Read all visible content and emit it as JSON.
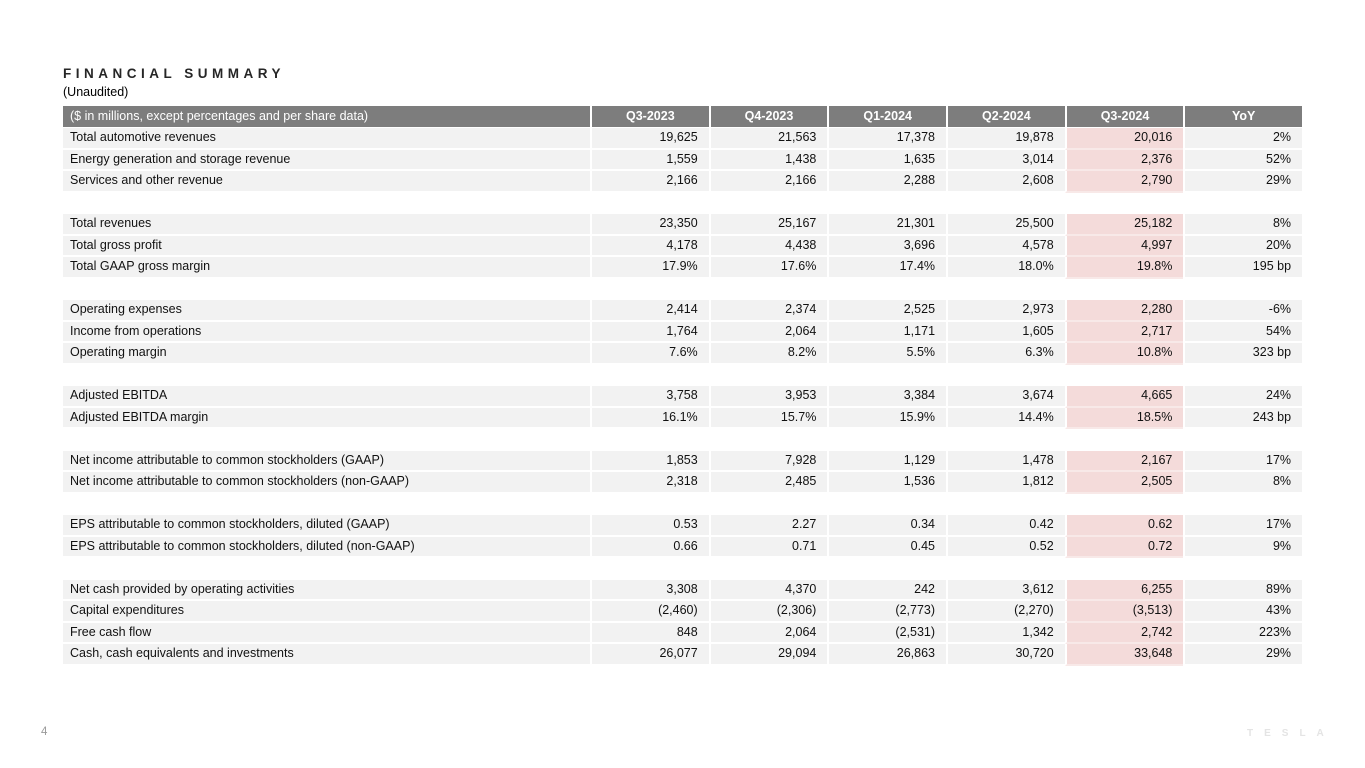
{
  "page": {
    "title": "FINANCIAL SUMMARY",
    "subtitle": "(Unaudited)",
    "page_number": "4",
    "brand_wordmark": "TESLA"
  },
  "colors": {
    "header_bg": "#7d7d7d",
    "header_text": "#ffffff",
    "row_bg": "#f2f2f2",
    "highlight_bg": "#f4dbda",
    "highlight_divider": "#f8e9e8"
  },
  "table": {
    "header_label": "($ in millions, except percentages and per share data)",
    "columns": [
      "Q3-2023",
      "Q4-2023",
      "Q1-2024",
      "Q2-2024",
      "Q3-2024",
      "YoY"
    ],
    "highlight_column_index": 4,
    "groups": [
      {
        "rows": [
          {
            "label": "Total automotive revenues",
            "values": [
              "19,625",
              "21,563",
              "17,378",
              "19,878",
              "20,016",
              "2%"
            ]
          },
          {
            "label": "Energy generation and storage revenue",
            "values": [
              "1,559",
              "1,438",
              "1,635",
              "3,014",
              "2,376",
              "52%"
            ]
          },
          {
            "label": "Services and other revenue",
            "values": [
              "2,166",
              "2,166",
              "2,288",
              "2,608",
              "2,790",
              "29%"
            ]
          }
        ]
      },
      {
        "rows": [
          {
            "label": "Total revenues",
            "values": [
              "23,350",
              "25,167",
              "21,301",
              "25,500",
              "25,182",
              "8%"
            ]
          },
          {
            "label": "Total gross profit",
            "values": [
              "4,178",
              "4,438",
              "3,696",
              "4,578",
              "4,997",
              "20%"
            ]
          },
          {
            "label": "Total GAAP gross margin",
            "values": [
              "17.9%",
              "17.6%",
              "17.4%",
              "18.0%",
              "19.8%",
              "195 bp"
            ]
          }
        ]
      },
      {
        "rows": [
          {
            "label": "Operating expenses",
            "values": [
              "2,414",
              "2,374",
              "2,525",
              "2,973",
              "2,280",
              "-6%"
            ]
          },
          {
            "label": "Income from operations",
            "values": [
              "1,764",
              "2,064",
              "1,171",
              "1,605",
              "2,717",
              "54%"
            ]
          },
          {
            "label": "Operating margin",
            "values": [
              "7.6%",
              "8.2%",
              "5.5%",
              "6.3%",
              "10.8%",
              "323 bp"
            ]
          }
        ]
      },
      {
        "rows": [
          {
            "label": "Adjusted EBITDA",
            "values": [
              "3,758",
              "3,953",
              "3,384",
              "3,674",
              "4,665",
              "24%"
            ]
          },
          {
            "label": "Adjusted EBITDA margin",
            "values": [
              "16.1%",
              "15.7%",
              "15.9%",
              "14.4%",
              "18.5%",
              "243 bp"
            ]
          }
        ]
      },
      {
        "rows": [
          {
            "label": "Net income attributable to common stockholders (GAAP)",
            "values": [
              "1,853",
              "7,928",
              "1,129",
              "1,478",
              "2,167",
              "17%"
            ]
          },
          {
            "label": "Net income attributable to common stockholders (non-GAAP)",
            "values": [
              "2,318",
              "2,485",
              "1,536",
              "1,812",
              "2,505",
              "8%"
            ]
          }
        ]
      },
      {
        "rows": [
          {
            "label": "EPS attributable to common stockholders, diluted (GAAP)",
            "values": [
              "0.53",
              "2.27",
              "0.34",
              "0.42",
              "0.62",
              "17%"
            ]
          },
          {
            "label": "EPS attributable to common stockholders, diluted (non-GAAP)",
            "values": [
              "0.66",
              "0.71",
              "0.45",
              "0.52",
              "0.72",
              "9%"
            ]
          }
        ]
      },
      {
        "rows": [
          {
            "label": "Net cash provided by operating activities",
            "values": [
              "3,308",
              "4,370",
              "242",
              "3,612",
              "6,255",
              "89%"
            ]
          },
          {
            "label": "Capital expenditures",
            "values": [
              "(2,460)",
              "(2,306)",
              "(2,773)",
              "(2,270)",
              "(3,513)",
              "43%"
            ]
          },
          {
            "label": "Free cash flow",
            "values": [
              "848",
              "2,064",
              "(2,531)",
              "1,342",
              "2,742",
              "223%"
            ]
          },
          {
            "label": "Cash, cash equivalents and investments",
            "values": [
              "26,077",
              "29,094",
              "26,863",
              "30,720",
              "33,648",
              "29%"
            ]
          }
        ]
      }
    ]
  }
}
